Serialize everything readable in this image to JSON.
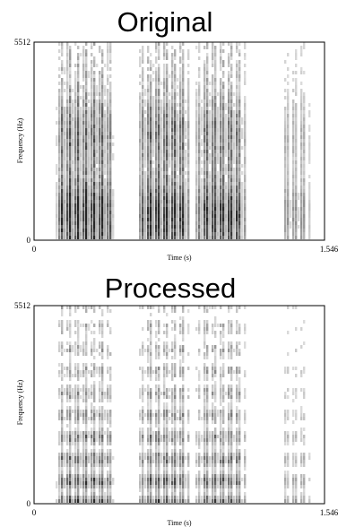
{
  "chart_data": [
    {
      "type": "heatmap",
      "title": "Original",
      "xlabel": "Time (s)",
      "ylabel": "Frequency (Hz)",
      "xlim": [
        0,
        1.546
      ],
      "ylim": [
        0,
        5512
      ],
      "x_tick_labels": [
        "0",
        "1.546"
      ],
      "y_tick_labels": [
        "0",
        "5512"
      ],
      "colormap": "grayscale",
      "grid": false
    },
    {
      "type": "heatmap",
      "title": "Processed",
      "xlabel": "Time (s)",
      "ylabel": "Frequency (Hz)",
      "xlim": [
        0,
        1.546
      ],
      "ylim": [
        0,
        5512
      ],
      "x_tick_labels": [
        "0",
        "1.546"
      ],
      "y_tick_labels": [
        "0",
        "5512"
      ],
      "colormap": "grayscale",
      "grid": false
    }
  ]
}
